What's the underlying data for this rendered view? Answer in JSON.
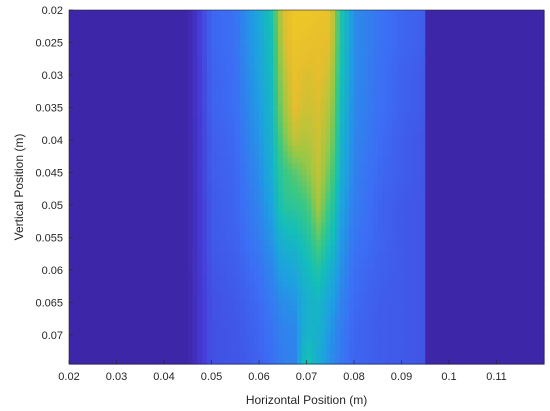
{
  "chart_data": {
    "type": "heatmap",
    "title": "",
    "xlabel": "Horizontal Position (m)",
    "ylabel": "Vertical Position (m)",
    "xlim": [
      0.02,
      0.12
    ],
    "ylim": [
      0.02,
      0.0745
    ],
    "y_reversed": true,
    "x_ticks": [
      "0.02",
      "0.03",
      "0.04",
      "0.05",
      "0.06",
      "0.07",
      "0.08",
      "0.09",
      "0.1",
      "0.11"
    ],
    "y_ticks": [
      "0.02",
      "0.025",
      "0.03",
      "0.035",
      "0.04",
      "0.045",
      "0.05",
      "0.055",
      "0.06",
      "0.065",
      "0.07"
    ],
    "colormap": "parula",
    "colors": {
      "background": "#3e26a8",
      "low": "#4236d0",
      "high": "#f7d21f"
    },
    "field": {
      "measured_x_range": [
        0.045,
        0.095
      ],
      "x_samples": [
        0.02,
        0.045,
        0.05,
        0.055,
        0.06,
        0.0625,
        0.065,
        0.0675,
        0.07,
        0.0725,
        0.075,
        0.0775,
        0.08,
        0.085,
        0.09,
        0.095,
        0.12
      ],
      "y_samples": [
        0.02,
        0.025,
        0.03,
        0.035,
        0.04,
        0.045,
        0.05,
        0.055,
        0.06,
        0.065,
        0.07,
        0.0745
      ],
      "values": [
        [
          0.0,
          0.0,
          0.2,
          0.23,
          0.38,
          0.5,
          0.82,
          0.9,
          0.9,
          0.88,
          0.86,
          0.5,
          0.3,
          0.24,
          0.2,
          0.18,
          0.0
        ],
        [
          0.0,
          0.0,
          0.2,
          0.23,
          0.37,
          0.48,
          0.8,
          0.88,
          0.86,
          0.85,
          0.84,
          0.5,
          0.3,
          0.24,
          0.2,
          0.18,
          0.0
        ],
        [
          0.0,
          0.0,
          0.19,
          0.22,
          0.36,
          0.46,
          0.76,
          0.86,
          0.82,
          0.84,
          0.8,
          0.48,
          0.3,
          0.23,
          0.19,
          0.17,
          0.0
        ],
        [
          0.0,
          0.0,
          0.19,
          0.22,
          0.34,
          0.44,
          0.72,
          0.84,
          0.8,
          0.82,
          0.76,
          0.45,
          0.29,
          0.23,
          0.19,
          0.17,
          0.0
        ],
        [
          0.0,
          0.0,
          0.18,
          0.21,
          0.32,
          0.42,
          0.66,
          0.78,
          0.76,
          0.8,
          0.72,
          0.42,
          0.28,
          0.22,
          0.18,
          0.16,
          0.0
        ],
        [
          0.0,
          0.0,
          0.18,
          0.2,
          0.3,
          0.4,
          0.58,
          0.64,
          0.7,
          0.78,
          0.66,
          0.4,
          0.27,
          0.21,
          0.18,
          0.16,
          0.0
        ],
        [
          0.0,
          0.0,
          0.17,
          0.2,
          0.28,
          0.36,
          0.54,
          0.56,
          0.6,
          0.74,
          0.58,
          0.36,
          0.26,
          0.2,
          0.17,
          0.16,
          0.0
        ],
        [
          0.0,
          0.0,
          0.17,
          0.19,
          0.26,
          0.32,
          0.44,
          0.46,
          0.52,
          0.64,
          0.5,
          0.33,
          0.24,
          0.2,
          0.17,
          0.16,
          0.0
        ],
        [
          0.0,
          0.0,
          0.16,
          0.18,
          0.23,
          0.28,
          0.36,
          0.38,
          0.46,
          0.52,
          0.42,
          0.3,
          0.22,
          0.19,
          0.17,
          0.16,
          0.0
        ],
        [
          0.0,
          0.0,
          0.15,
          0.17,
          0.21,
          0.25,
          0.3,
          0.32,
          0.42,
          0.44,
          0.36,
          0.27,
          0.21,
          0.18,
          0.17,
          0.16,
          0.0
        ],
        [
          0.0,
          0.0,
          0.15,
          0.16,
          0.2,
          0.23,
          0.27,
          0.28,
          0.44,
          0.42,
          0.32,
          0.25,
          0.2,
          0.18,
          0.17,
          0.16,
          0.0
        ],
        [
          0.0,
          0.0,
          0.15,
          0.16,
          0.19,
          0.22,
          0.26,
          0.27,
          0.52,
          0.4,
          0.3,
          0.24,
          0.2,
          0.18,
          0.17,
          0.16,
          0.0
        ]
      ]
    },
    "grid": false,
    "legend": "none"
  }
}
